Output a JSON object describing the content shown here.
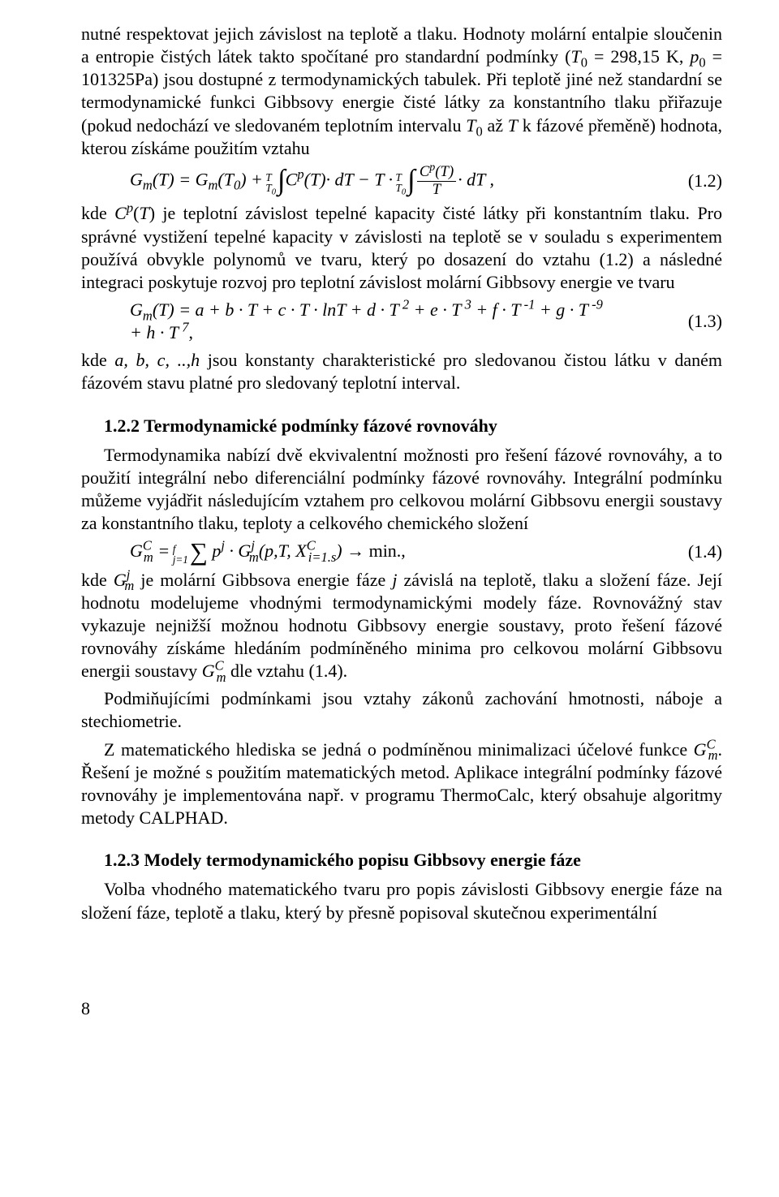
{
  "paragraphs": {
    "p1a": "nutné respektovat jejich závislost na teplotě a tlaku. Hodnoty molární entalpie sloučenin a entropie čistých látek takto spočítané pro standardní podmínky (",
    "p1b": " = 298,15 K, ",
    "p1c": " = 101325Pa) jsou dostupné z termodynamických tabulek. Při teplotě jiné než standardní se termodynamické funkci Gibbsovy energie čisté látky za konstantního tlaku přiřazuje (pokud nedochází ve sledovaném teplotním intervalu ",
    "p1d": " až ",
    "p1e": " k fázové přeměně) hodnota, kterou získáme použitím vztahu",
    "p2a": "kde ",
    "p2b": ") je teplotní závislost tepelné kapacity čisté látky při konstantním tlaku. Pro správné vystižení tepelné kapacity v závislosti na teplotě se v souladu s experimentem používá obvykle polynomů ve tvaru, který po dosazení do vztahu (1.2) a následné integraci poskytuje rozvoj pro teplotní závislost molární Gibbsovy energie ve tvaru",
    "p3a": "kde ",
    "p3b": " jsou konstanty charakteristické pro sledovanou čistou látku v daném fázovém stavu platné pro sledovaný teplotní interval.",
    "h122": "1.2.2 Termodynamické podmínky fázové rovnováhy",
    "p4": "Termodynamika nabízí dvě ekvivalentní možnosti pro řešení fázové rovnováhy, a to použití integrální nebo diferenciální podmínky fázové rovnováhy. Integrální podmínku můžeme vyjádřit následujícím vztahem pro celkovou molární Gibbsovu energii soustavy za konstantního tlaku, teploty a celkového chemického složení",
    "p5a": "kde ",
    "p5b": " je molární Gibbsova energie fáze ",
    "p5c": " závislá na teplotě, tlaku a složení fáze. Její hodnotu modelujeme vhodnými termodynamickými modely fáze. Rovnovážný stav vykazuje nejnižší možnou hodnotu Gibbsovy energie soustavy, proto řešení fázové rovnováhy získáme hledáním podmíněného minima pro celkovou molární Gibbsovu energii soustavy ",
    "p5d": " dle vztahu (1.4).",
    "p6": "Podmiňujícími podmínkami jsou vztahy zákonů zachování hmotnosti, náboje a stechiometrie.",
    "p7a": "Z matematického hlediska se jedná o podmíněnou minimalizaci účelové funkce ",
    "p7b": ". Řešení je možné s použitím matematických metod. Aplikace integrální podmínky fázové rovnováhy je implementována např. v programu ThermoCalc, který obsahuje algoritmy metody CALPHAD.",
    "h123": "1.2.3 Modely termodynamického popisu Gibbsovy energie fáze",
    "p8": "Volba vhodného matematického tvaru pro popis závislosti Gibbsovy energie fáze na složení fáze, teplotě a tlaku, který by přesně popisoval skutečnou experimentální",
    "pageno": "8"
  },
  "eq": {
    "eq12_num": "(1.2)",
    "eq13_num": "(1.3)",
    "eq14_num": "(1.4)",
    "min": " min.,",
    "arrow": " → ",
    "comma": " ,",
    "plus_h": "+ h · T"
  },
  "sym": {
    "T0": "T",
    "zero": "0",
    "p0": "p",
    "T": "T",
    "Cp": "C",
    "p": "p",
    "openp": "(",
    "closep": ")",
    "Gm": "G",
    "m": "m",
    "j": "j",
    "C": "C",
    "i1s": "i=1.s",
    "abc": "a, b, c, ..,h",
    "eq13_main": "(T) = a + b · T + c · T · lnT + d · T",
    "two": " 2",
    "plus_e": " + e · T",
    "three": " 3",
    "plus_f": " + f · T",
    "minus1": " -1",
    "plus_g": " + g · T",
    "minus9": " -9",
    "seven": " 7",
    "f": "f",
    "one": "1",
    "jeq1": "j=1",
    "dT": " dT",
    "eq": " = ",
    "plus": " + ",
    "minus_T": " − T · ",
    "X": "X",
    "pTX": "p,T, "
  }
}
